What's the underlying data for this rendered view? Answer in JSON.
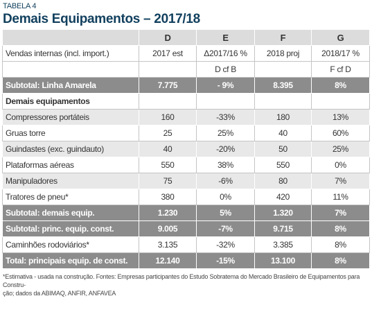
{
  "label": "TABELA 4",
  "title": "Demais Equipamentos – 2017/18",
  "table": {
    "header": [
      null,
      "D",
      "E",
      "F",
      "G"
    ],
    "rows": [
      [
        "Vendas internas (incl. import.)",
        "2017 est",
        "Δ2017/16 %",
        "2018 proj",
        "2018/17 %"
      ],
      [
        null,
        null,
        "D cf B",
        null,
        "F cf D"
      ],
      [
        "Subtotal: Linha Amarela",
        "7.775",
        "- 9%",
        "8.395",
        "8%"
      ],
      [
        "Demais equipamentos",
        null,
        null,
        null,
        null
      ],
      [
        "Compressores portáteis",
        "160",
        "-33%",
        "180",
        "13%"
      ],
      [
        "Gruas torre",
        "25",
        "25%",
        "40",
        "60%"
      ],
      [
        "Guindastes (exc. guindauto)",
        "40",
        "-20%",
        "50",
        "25%"
      ],
      [
        "Plataformas aéreas",
        "550",
        "38%",
        "550",
        "0%"
      ],
      [
        "Manipuladores",
        "75",
        "-6%",
        "80",
        "7%"
      ],
      [
        "Tratores de pneu*",
        "380",
        "0%",
        "420",
        "11%"
      ],
      [
        "Subtotal: demais equip.",
        "1.230",
        "5%",
        "1.320",
        "7%"
      ],
      [
        "Subtotal: princ. equip. const.",
        "9.005",
        "-7%",
        "9.715",
        "8%"
      ],
      [
        "Caminhões rodoviários*",
        "3.135",
        "-32%",
        "3.385",
        "8%"
      ],
      [
        "Total: principais equip. de const.",
        "12.140",
        "-15%",
        "13.100",
        "8%"
      ]
    ]
  },
  "footnote": [
    "*Estimativa - usada na construção. Fontes: Empresas participantes do Estudo Sobratema do Mercado Brasileiro de Equipamentos para Constru-",
    "ção; dados da ABIMAQ, ANFIR, ANFAVEA"
  ]
}
